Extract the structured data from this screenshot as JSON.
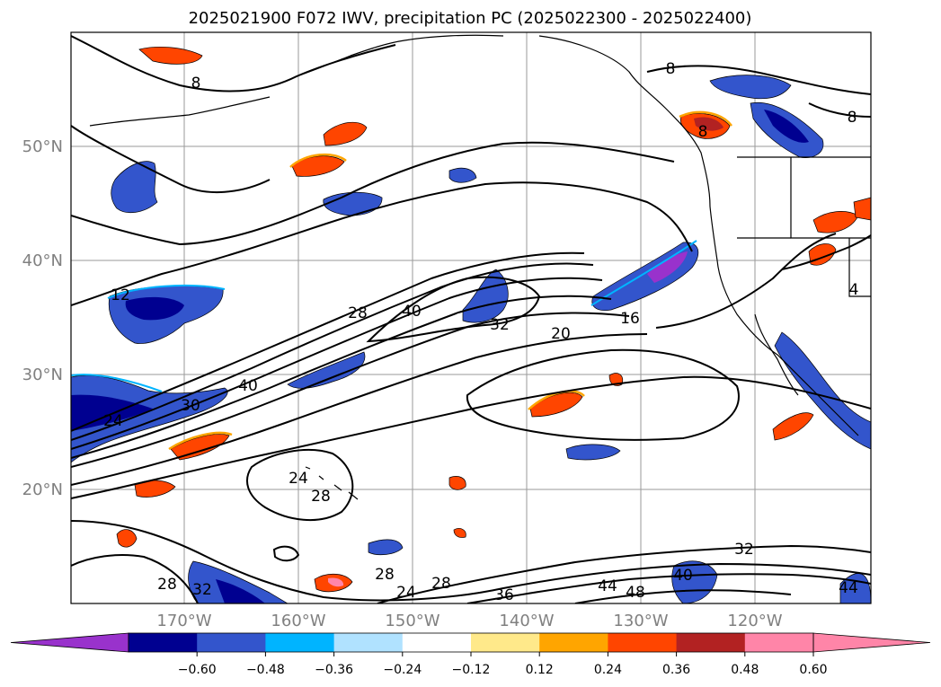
{
  "title": "2025021900 F072 IWV, precipitation PC (2025022300 - 2025022400)",
  "map": {
    "lat_labels": [
      "50°N",
      "40°N",
      "30°N",
      "20°N"
    ],
    "lon_labels": [
      "170°W",
      "160°W",
      "150°W",
      "140°W",
      "130°W",
      "120°W"
    ],
    "contour_labels": [
      "8",
      "8",
      "8",
      "8",
      "12",
      "28",
      "40",
      "32",
      "20",
      "16",
      "24",
      "30",
      "40",
      "24",
      "28",
      "28",
      "28",
      "32",
      "24",
      "28",
      "36",
      "44",
      "48",
      "40",
      "32",
      "44",
      "4"
    ],
    "grid": true
  },
  "colorbar": {
    "colors": [
      "#9932cc",
      "#000090",
      "#3355cc",
      "#00b4ff",
      "#b0e2ff",
      "#ffffff",
      "#ffe98a",
      "#ffa500",
      "#ff4500",
      "#b22222",
      "#ff85a8",
      "#ff85a8"
    ],
    "ticks": [
      "−0.60",
      "−0.48",
      "−0.36",
      "−0.24",
      "−0.12",
      "0.12",
      "0.24",
      "0.36",
      "0.48",
      "0.60"
    ]
  }
}
